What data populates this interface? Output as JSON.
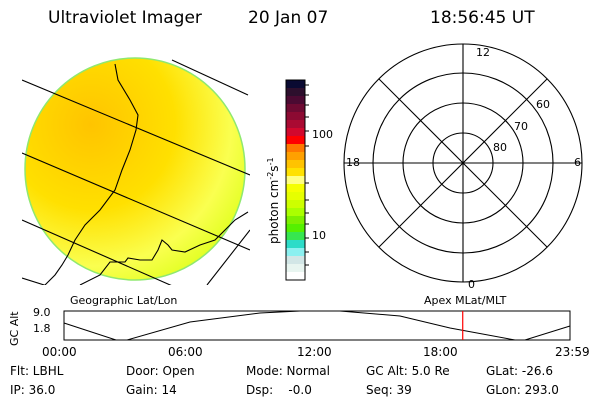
{
  "header": {
    "instrument": "Ultraviolet Imager",
    "date": "20 Jan 07",
    "time": "18:56:45 UT"
  },
  "colorbar": {
    "label": "photon cm",
    "label_exp1": "-2",
    "label_s": "s",
    "label_exp2": "-1",
    "ticks": [
      "100",
      "10"
    ],
    "colors": [
      "#0a0a32",
      "#2d0f2d",
      "#4b0a32",
      "#6e0a32",
      "#8c0a32",
      "#aa0a32",
      "#d2082d",
      "#ff0000",
      "#ff7800",
      "#ffa000",
      "#ffc300",
      "#ffe100",
      "#ffff82",
      "#f5ff00",
      "#e6ff00",
      "#cdff00",
      "#aaff00",
      "#7df000",
      "#55f000",
      "#37e650",
      "#2ddcc8",
      "#8cf0f0",
      "#d2e6e6",
      "#e8f5f0",
      "#ffffff"
    ]
  },
  "polar": {
    "mlt_labels": [
      "12",
      "18",
      "6",
      "0"
    ],
    "lat_labels": [
      "60",
      "70",
      "80"
    ]
  },
  "projection_labels": {
    "geo": "Geographic Lat/Lon",
    "apex": "Apex MLat/MLT"
  },
  "altitude_plot": {
    "ylabel": "GC Alt",
    "yticks": [
      "9.0",
      "1.8"
    ],
    "xticks": [
      "00:00",
      "06:00",
      "12:00",
      "18:00",
      "23:59"
    ],
    "current_time_fraction": 0.788,
    "marker_color": "#ff0000"
  },
  "status": {
    "flt": "Flt: LBHL",
    "ip": "IP: 36.0",
    "door": "Door: Open",
    "gain": "Gain: 14",
    "mode": "Mode: Normal",
    "dsp": "Dsp:    -0.0",
    "gcalt": "GC Alt: 5.0 Re",
    "seq": "Seq: 39",
    "glat": "GLat: -26.6",
    "glon": "GLon: 293.0"
  }
}
